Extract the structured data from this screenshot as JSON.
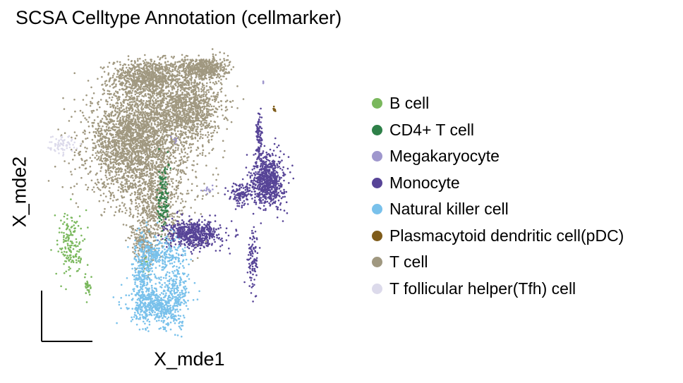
{
  "chart_data": {
    "type": "scatter",
    "title": "SCSA Celltype Annotation (cellmarker)",
    "xlabel": "X_mde1",
    "ylabel": "X_mde2",
    "xlim": [
      0,
      100
    ],
    "ylim": [
      0,
      100
    ],
    "legend_position": "right",
    "grid": false,
    "series": [
      {
        "name": "B cell",
        "color": "#7ab85d",
        "clusters": [
          {
            "cx": 9.5,
            "cy": 33,
            "sx": 2.2,
            "sy": 5.5,
            "n": 160
          },
          {
            "cx": 15.4,
            "cy": 18.5,
            "sx": 0.6,
            "sy": 2.0,
            "n": 30
          },
          {
            "cx": 34.5,
            "cy": 26,
            "sx": 0.8,
            "sy": 1.0,
            "n": 12
          }
        ]
      },
      {
        "name": "CD4+ T cell",
        "color": "#2e8048",
        "clusters": [
          {
            "cx": 40.5,
            "cy": 49,
            "sx": 1.0,
            "sy": 6.5,
            "n": 120
          }
        ]
      },
      {
        "name": "Megakaryocyte",
        "color": "#9f97cd",
        "clusters": [
          {
            "cx": 55.5,
            "cy": 52,
            "sx": 1.2,
            "sy": 0.6,
            "n": 14
          },
          {
            "cx": 73.5,
            "cy": 88,
            "sx": 0.3,
            "sy": 0.5,
            "n": 3
          },
          {
            "cx": 44,
            "cy": 69,
            "sx": 1.0,
            "sy": 1.0,
            "n": 6
          }
        ]
      },
      {
        "name": "Monocyte",
        "color": "#574497",
        "clusters": [
          {
            "cx": 50.5,
            "cy": 36.5,
            "sx": 4.5,
            "sy": 2.3,
            "n": 600
          },
          {
            "cx": 75.5,
            "cy": 55,
            "sx": 2.6,
            "sy": 4.5,
            "n": 700
          },
          {
            "cx": 72.5,
            "cy": 70,
            "sx": 0.6,
            "sy": 4.0,
            "n": 90
          },
          {
            "cx": 70.5,
            "cy": 28,
            "sx": 0.9,
            "sy": 5.0,
            "n": 100
          },
          {
            "cx": 66.5,
            "cy": 50,
            "sx": 2.0,
            "sy": 2.0,
            "n": 120
          }
        ]
      },
      {
        "name": "Natural killer cell",
        "color": "#79c1eb",
        "clusters": [
          {
            "cx": 33.5,
            "cy": 22,
            "sx": 1.8,
            "sy": 7.5,
            "n": 300
          },
          {
            "cx": 38,
            "cy": 12,
            "sx": 4.5,
            "sy": 3.0,
            "n": 400
          },
          {
            "cx": 44,
            "cy": 17,
            "sx": 2.5,
            "sy": 6.5,
            "n": 300
          },
          {
            "cx": 40,
            "cy": 30,
            "sx": 4.0,
            "sy": 2.5,
            "n": 200
          }
        ]
      },
      {
        "name": "Plasmacytoid dendritic cell(pDC)",
        "color": "#7f5c1a",
        "clusters": [
          {
            "cx": 77.5,
            "cy": 79,
            "sx": 0.25,
            "sy": 0.5,
            "n": 8
          }
        ]
      },
      {
        "name": "T cell",
        "color": "#a09880",
        "clusters": [
          {
            "cx": 35,
            "cy": 90,
            "sx": 6.0,
            "sy": 3.0,
            "n": 800
          },
          {
            "cx": 48,
            "cy": 80,
            "sx": 6.0,
            "sy": 6.0,
            "n": 1200
          },
          {
            "cx": 31,
            "cy": 68,
            "sx": 8.0,
            "sy": 9.0,
            "n": 2500
          },
          {
            "cx": 54,
            "cy": 93,
            "sx": 4.0,
            "sy": 2.0,
            "n": 500
          },
          {
            "cx": 37,
            "cy": 46,
            "sx": 4.0,
            "sy": 6.0,
            "n": 400
          },
          {
            "cx": 33.5,
            "cy": 33,
            "sx": 2.0,
            "sy": 3.0,
            "n": 150
          },
          {
            "cx": 40,
            "cy": 55,
            "sx": 10.0,
            "sy": 12.0,
            "n": 300
          }
        ]
      },
      {
        "name": "T follicular helper(Tfh) cell",
        "color": "#dcdaeb",
        "clusters": [
          {
            "cx": 6.5,
            "cy": 67,
            "sx": 2.2,
            "sy": 1.6,
            "n": 70
          }
        ]
      }
    ]
  }
}
